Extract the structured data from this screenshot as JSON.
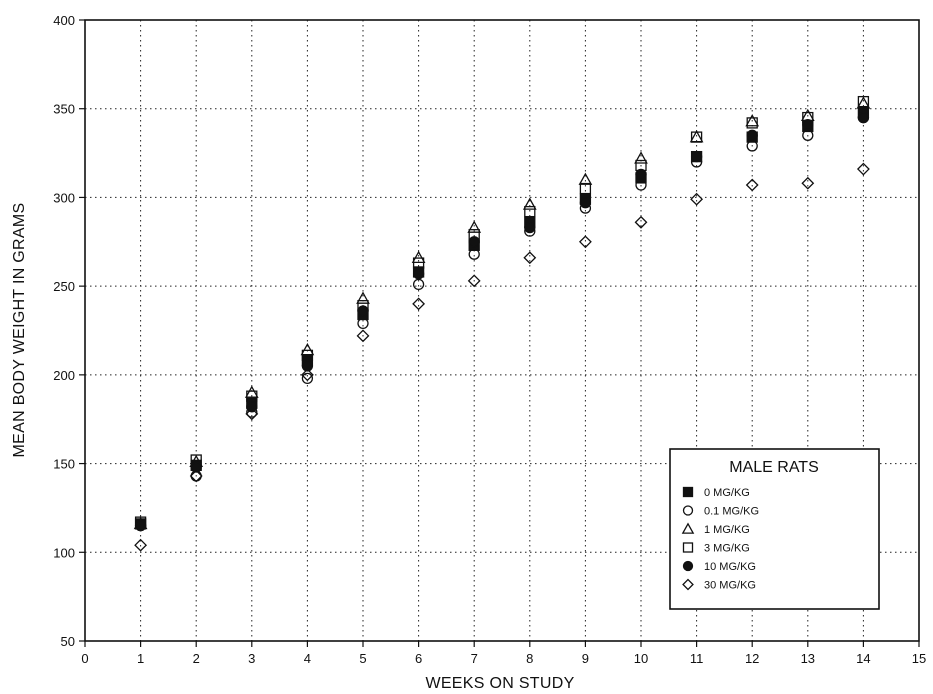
{
  "chart_data": {
    "type": "scatter",
    "title": "",
    "xlabel": "WEEKS ON STUDY",
    "ylabel": "MEAN BODY WEIGHT IN GRAMS",
    "xlim": [
      0,
      15
    ],
    "ylim": [
      50,
      400
    ],
    "xticks": [
      "0",
      "1",
      "2",
      "3",
      "4",
      "5",
      "6",
      "7",
      "8",
      "9",
      "10",
      "11",
      "12",
      "13",
      "14",
      "15"
    ],
    "yticks": [
      "50",
      "100",
      "150",
      "200",
      "250",
      "300",
      "350",
      "400"
    ],
    "grid": true,
    "legend": {
      "title": "MALE RATS",
      "position": "bottom-right"
    },
    "x": [
      1,
      2,
      3,
      4,
      5,
      6,
      7,
      8,
      9,
      10,
      11,
      12,
      13,
      14
    ],
    "series": [
      {
        "name": "0 MG/KG",
        "marker": "filled-square",
        "values": [
          116,
          149,
          184,
          208,
          234,
          258,
          273,
          286,
          299,
          311,
          323,
          334,
          340,
          348
        ]
      },
      {
        "name": "0.1 MG/KG",
        "marker": "open-circle",
        "values": [
          115,
          143,
          179,
          198,
          229,
          251,
          268,
          281,
          294,
          307,
          320,
          329,
          335,
          345
        ]
      },
      {
        "name": "1 MG/KG",
        "marker": "open-triangle",
        "values": [
          116,
          151,
          190,
          214,
          243,
          266,
          283,
          296,
          310,
          322,
          334,
          343,
          346,
          353
        ]
      },
      {
        "name": "3 MG/KG",
        "marker": "open-square",
        "values": [
          117,
          152,
          188,
          211,
          239,
          263,
          279,
          292,
          305,
          318,
          334,
          342,
          345,
          354
        ]
      },
      {
        "name": "10 MG/KG",
        "marker": "filled-circle",
        "values": [
          115,
          148,
          182,
          205,
          236,
          257,
          275,
          283,
          297,
          313,
          323,
          335,
          341,
          345
        ]
      },
      {
        "name": "30 MG/KG",
        "marker": "open-diamond",
        "values": [
          104,
          143,
          178,
          200,
          222,
          240,
          253,
          266,
          275,
          286,
          299,
          307,
          308,
          316
        ]
      }
    ]
  }
}
